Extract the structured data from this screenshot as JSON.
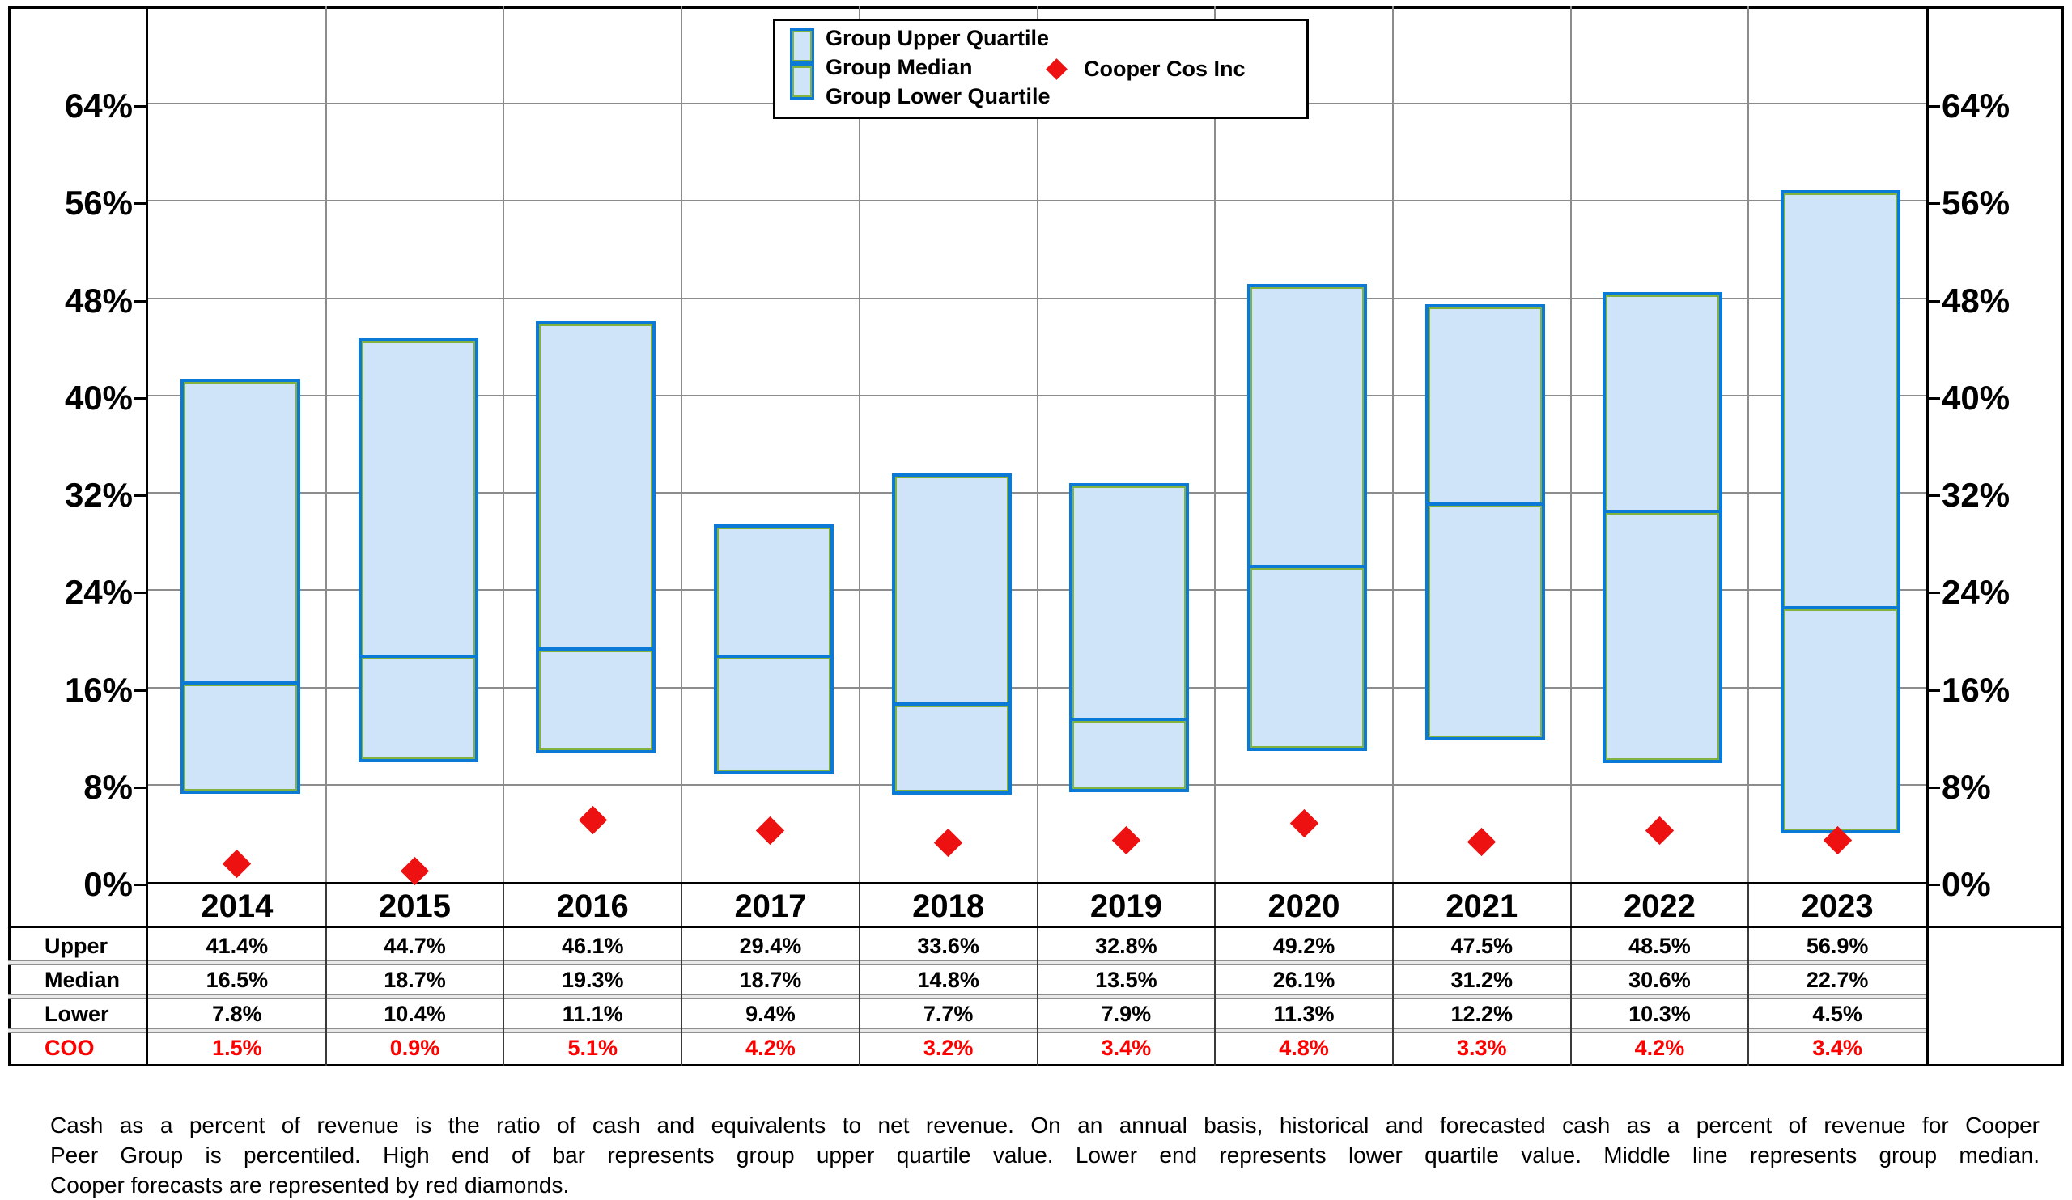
{
  "chart_data": {
    "type": "bar",
    "subtype": "floating-quartile-range-with-scatter-overlay",
    "title": "",
    "categories": [
      "2014",
      "2015",
      "2016",
      "2017",
      "2018",
      "2019",
      "2020",
      "2021",
      "2022",
      "2023"
    ],
    "series": [
      {
        "name": "Group Upper Quartile",
        "values": [
          41.4,
          44.7,
          46.1,
          29.4,
          33.6,
          32.8,
          49.2,
          47.5,
          48.5,
          56.9
        ]
      },
      {
        "name": "Group Median",
        "values": [
          16.5,
          18.7,
          19.3,
          18.7,
          14.8,
          13.5,
          26.1,
          31.2,
          30.6,
          22.7
        ]
      },
      {
        "name": "Group Lower Quartile",
        "values": [
          7.8,
          10.4,
          11.1,
          9.4,
          7.7,
          7.9,
          11.3,
          12.2,
          10.3,
          4.5
        ]
      },
      {
        "name": "Cooper Cos Inc",
        "type": "scatter",
        "marker": "diamond",
        "values": [
          1.5,
          0.9,
          5.1,
          4.2,
          3.2,
          3.4,
          4.8,
          3.3,
          4.2,
          3.4
        ]
      }
    ],
    "xlabel": "",
    "ylabel": "",
    "ylim": [
      0,
      72
    ],
    "yticks": [
      0,
      8,
      16,
      24,
      32,
      40,
      48,
      56,
      64
    ],
    "ytick_suffix": "%",
    "grid": "both",
    "legend_position": "top-center",
    "dual_y_axis_labels": true
  },
  "legend": {
    "items": [
      "Group Upper Quartile",
      "Group Median",
      "Group Lower Quartile"
    ],
    "marker_item": "Cooper Cos Inc"
  },
  "table": {
    "row_labels": [
      "Upper",
      "Median",
      "Lower",
      "COO"
    ],
    "rows": [
      [
        "41.4%",
        "44.7%",
        "46.1%",
        "29.4%",
        "33.6%",
        "32.8%",
        "49.2%",
        "47.5%",
        "48.5%",
        "56.9%"
      ],
      [
        "16.5%",
        "18.7%",
        "19.3%",
        "18.7%",
        "14.8%",
        "13.5%",
        "26.1%",
        "31.2%",
        "30.6%",
        "22.7%"
      ],
      [
        "7.8%",
        "10.4%",
        "11.1%",
        "9.4%",
        "7.7%",
        "7.9%",
        "11.3%",
        "12.2%",
        "10.3%",
        "4.5%"
      ],
      [
        "1.5%",
        "0.9%",
        "5.1%",
        "4.2%",
        "3.2%",
        "3.4%",
        "4.8%",
        "3.3%",
        "4.2%",
        "3.4%"
      ]
    ]
  },
  "footnote_lines": [
    "Cash as a percent of revenue is the ratio of cash and equivalents to net revenue.  On an annual basis, historical and forecasted cash as a percent of revenue for Cooper",
    "Peer Group is percentiled.  High end of bar represents group upper quartile value.  Lower end represents lower quartile value.  Middle line represents group median.",
    "Cooper forecasts are represented by red diamonds."
  ],
  "colors": {
    "bar_fill": "#cfe4f8",
    "bar_border_blue": "#0b7ad6",
    "bar_inner_green": "#84b23f",
    "cooper_red": "#ee1111",
    "coo_row_text": "#ff0000",
    "gridline_gray": "#8c8c8c"
  }
}
